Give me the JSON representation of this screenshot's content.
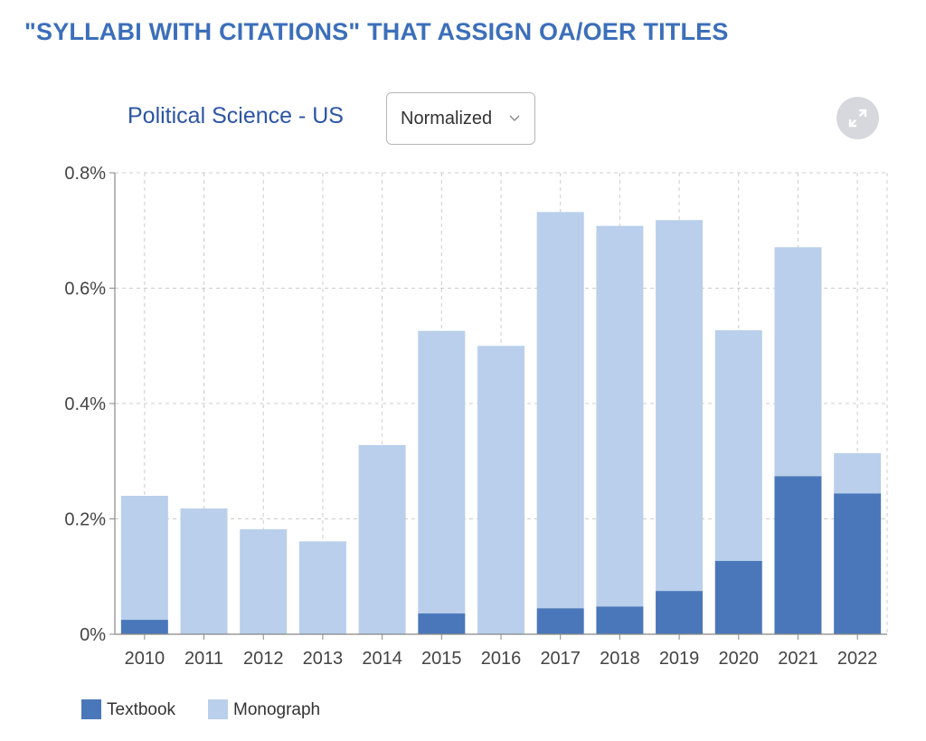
{
  "header": {
    "title": "\"SYLLABI WITH CITATIONS\" THAT ASSIGN OA/OER TITLES"
  },
  "controls": {
    "subject": "Political Science - US",
    "mode": "Normalized",
    "expand_icon": "expand-icon",
    "chevron_icon": "chevron-down-icon"
  },
  "colors": {
    "textbook": "#4a77b9",
    "monograph": "#b9cfeb",
    "title": "#3c6fba",
    "subject": "#2c55a4",
    "grid": "#cccccc"
  },
  "legend": {
    "textbook": "Textbook",
    "monograph": "Monograph"
  },
  "chart_data": {
    "type": "bar",
    "stacked": true,
    "categories": [
      "2010",
      "2011",
      "2012",
      "2013",
      "2014",
      "2015",
      "2016",
      "2017",
      "2018",
      "2019",
      "2020",
      "2021",
      "2022"
    ],
    "series": [
      {
        "name": "Textbook",
        "values": [
          0.025,
          0,
          0,
          0,
          0,
          0.036,
          0,
          0.045,
          0.048,
          0.075,
          0.127,
          0.274,
          0.244
        ]
      },
      {
        "name": "Monograph",
        "values": [
          0.215,
          0.218,
          0.182,
          0.161,
          0.328,
          0.49,
          0.5,
          0.687,
          0.66,
          0.643,
          0.4,
          0.397,
          0.07
        ]
      }
    ],
    "ylim": [
      0,
      0.8
    ],
    "yticks": [
      "0%",
      "0.2%",
      "0.4%",
      "0.6%",
      "0.8%"
    ],
    "ytick_values": [
      0,
      0.2,
      0.4,
      0.6,
      0.8
    ],
    "grid": true,
    "legend_position": "bottom-left"
  }
}
